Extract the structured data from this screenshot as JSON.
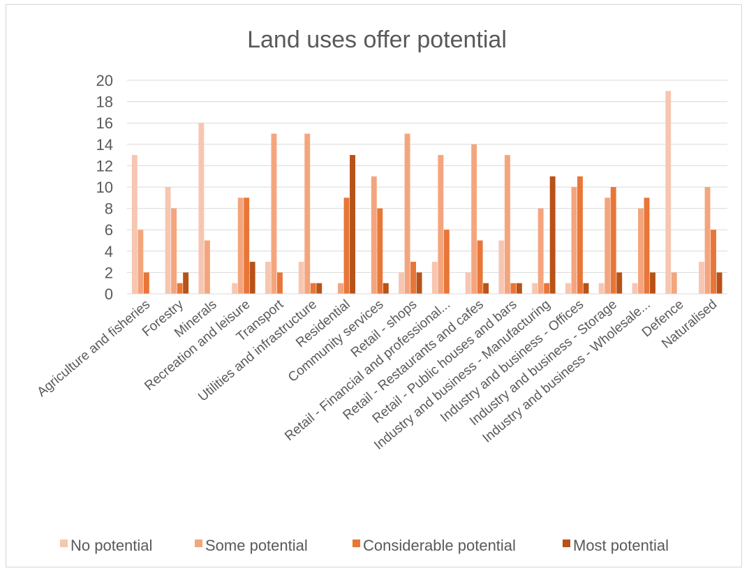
{
  "chart_data": {
    "type": "bar",
    "title": "Land uses offer potential",
    "xlabel": "",
    "ylabel": "",
    "ylim": [
      0,
      20
    ],
    "yticks": [
      0,
      2,
      4,
      6,
      8,
      10,
      12,
      14,
      16,
      18,
      20
    ],
    "grid": true,
    "legend_position": "bottom",
    "categories": [
      "Agriculture and fisheries",
      "Forestry",
      "Minerals",
      "Recreation and leisure",
      "Transport",
      "Utilities and infrastructure",
      "Residential",
      "Community services",
      "Retail - shops",
      "Retail - Financial and professional...",
      "Retail - Restaurants and cafes",
      "Retail - Public houses and bars",
      "Industry and business - Manufacturing",
      "Industry and business - Offices",
      "Industry and business - Storage",
      "Industry and business - Wholesale...",
      "Defence",
      "Naturalised"
    ],
    "series": [
      {
        "name": "No potential",
        "color": "#f7c6b1",
        "values": [
          13,
          10,
          16,
          1,
          3,
          3,
          0,
          0,
          2,
          3,
          2,
          5,
          1,
          1,
          1,
          1,
          19,
          3
        ]
      },
      {
        "name": "Some potential",
        "color": "#f4a57e",
        "values": [
          6,
          8,
          5,
          9,
          15,
          15,
          1,
          11,
          15,
          13,
          14,
          13,
          8,
          10,
          9,
          8,
          2,
          10
        ]
      },
      {
        "name": "Considerable potential",
        "color": "#e87637",
        "values": [
          2,
          1,
          0,
          9,
          2,
          1,
          9,
          8,
          3,
          6,
          5,
          1,
          1,
          11,
          10,
          9,
          0,
          6
        ]
      },
      {
        "name": "Most potential",
        "color": "#b85217",
        "values": [
          0,
          2,
          0,
          3,
          0,
          1,
          13,
          1,
          2,
          0,
          1,
          1,
          11,
          1,
          2,
          2,
          0,
          2
        ]
      }
    ]
  }
}
